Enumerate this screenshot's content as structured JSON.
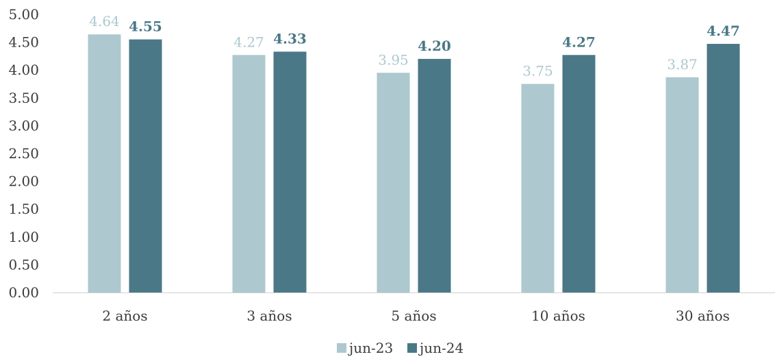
{
  "chart_data": {
    "type": "bar",
    "categories": [
      "2 años",
      "3 años",
      "5 años",
      "10 años",
      "30 años"
    ],
    "series": [
      {
        "name": "jun-23",
        "values": [
          4.64,
          4.27,
          3.95,
          3.75,
          3.87
        ],
        "color": "#adc8cf"
      },
      {
        "name": "jun-24",
        "values": [
          4.55,
          4.33,
          4.2,
          4.27,
          4.47
        ],
        "color": "#4a7886"
      }
    ],
    "data_labels": [
      [
        "4.64",
        "4.27",
        "3.95",
        "3.75",
        "3.87"
      ],
      [
        "4.55",
        "4.33",
        "4.20",
        "4.27",
        "4.47"
      ]
    ],
    "y_ticks": [
      "0.00",
      "0.50",
      "1.00",
      "1.50",
      "2.00",
      "2.50",
      "3.00",
      "3.50",
      "4.00",
      "4.50",
      "5.00"
    ],
    "ylim": [
      0,
      5
    ],
    "grid": false,
    "legend_position": "bottom-center",
    "title": "",
    "xlabel": "",
    "ylabel": ""
  }
}
